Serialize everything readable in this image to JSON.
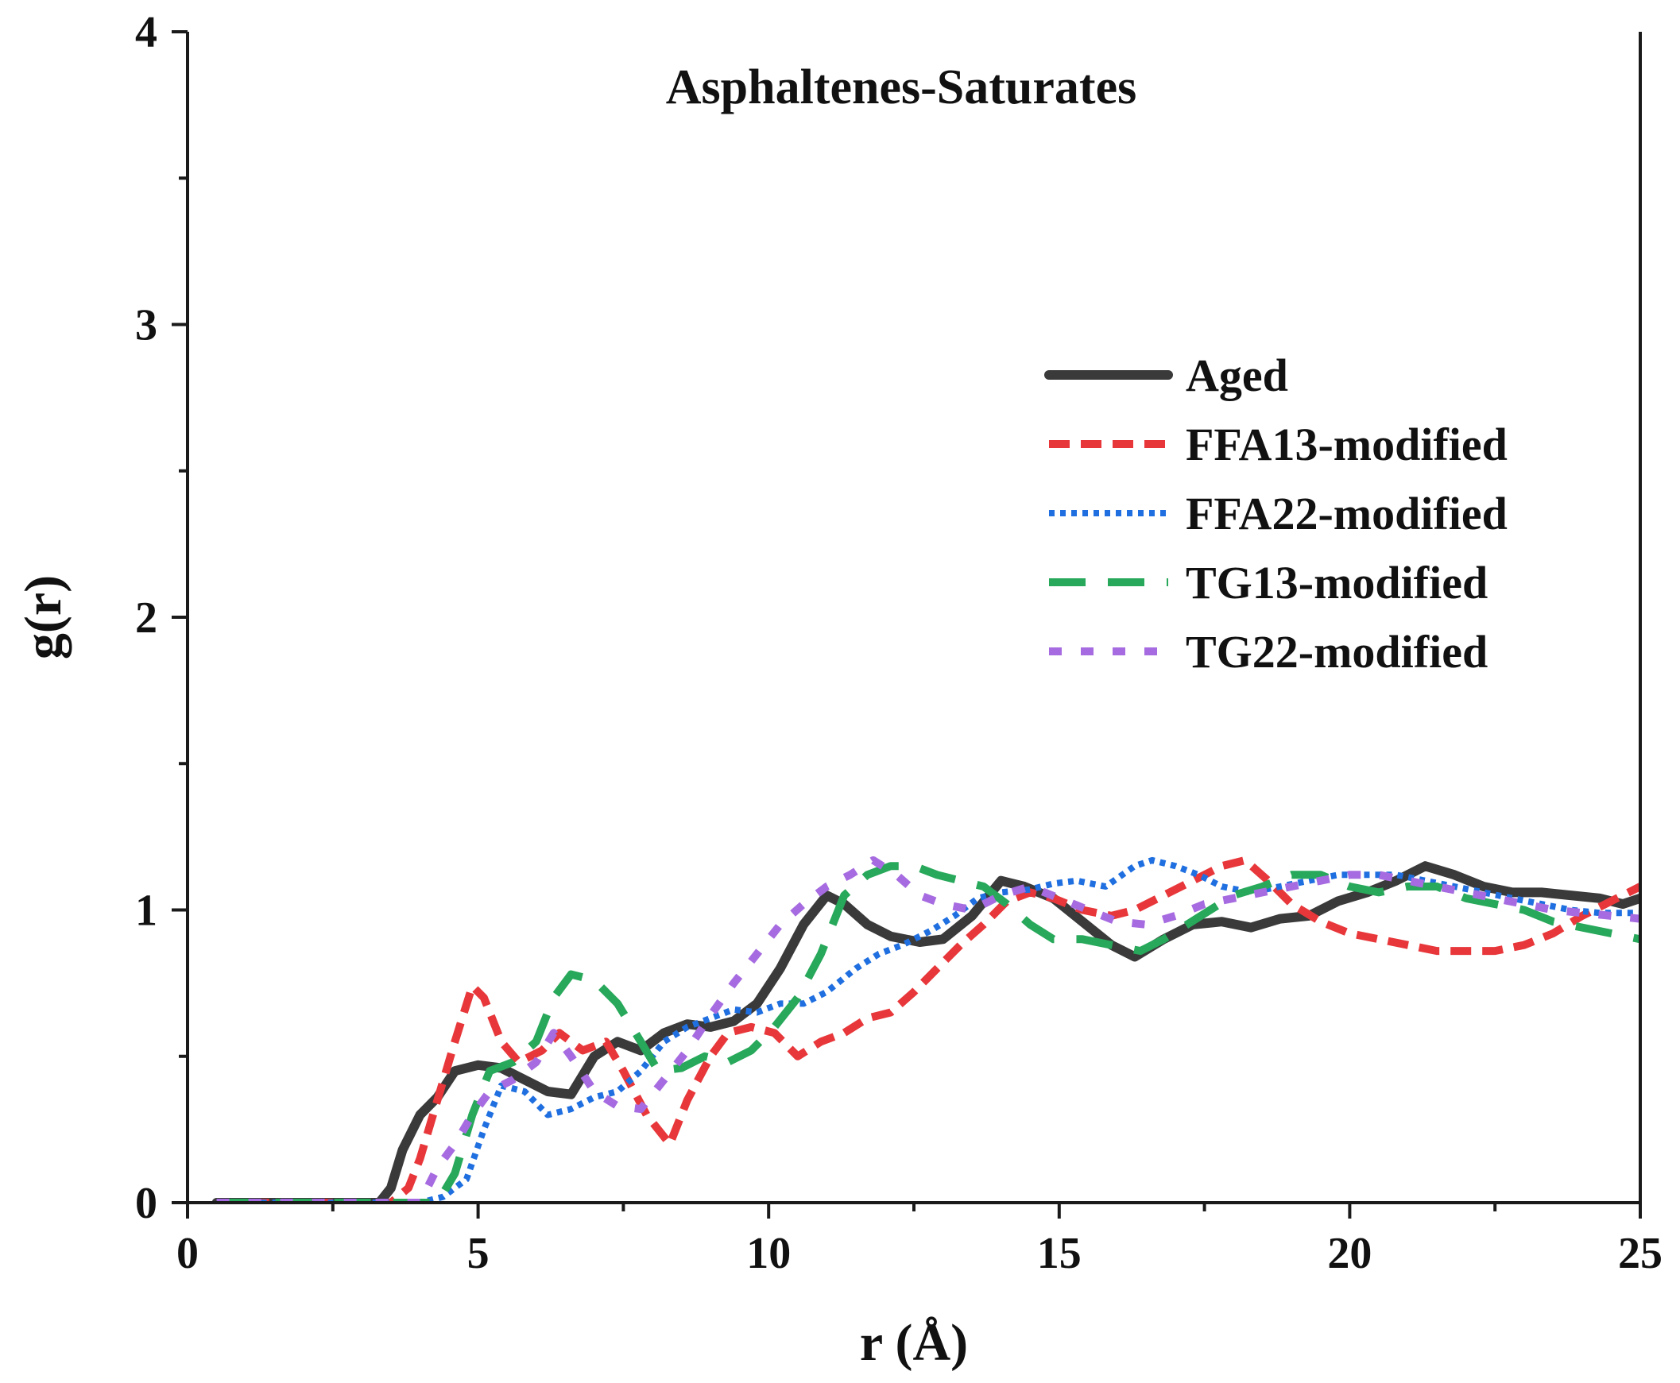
{
  "chart_data": {
    "type": "line",
    "title": "Asphaltenes-Saturates",
    "xlabel": "r (Å)",
    "ylabel": "g(r)",
    "xlim": [
      0,
      25
    ],
    "ylim": [
      0,
      4
    ],
    "xticks": [
      0,
      5,
      10,
      15,
      20,
      25
    ],
    "yticks": [
      0,
      1,
      2,
      3,
      4
    ],
    "xtick_labels": [
      "0",
      "5",
      "10",
      "15",
      "20",
      "25"
    ],
    "ytick_labels": [
      "0",
      "1",
      "2",
      "3",
      "4"
    ],
    "legend_position": "right",
    "series": [
      {
        "name": "Aged",
        "color": "#3a3a3a",
        "style": "solid",
        "points": [
          [
            0.5,
            0
          ],
          [
            3.3,
            0
          ],
          [
            3.5,
            0.05
          ],
          [
            3.7,
            0.18
          ],
          [
            4.0,
            0.3
          ],
          [
            4.3,
            0.36
          ],
          [
            4.6,
            0.45
          ],
          [
            5.0,
            0.47
          ],
          [
            5.4,
            0.46
          ],
          [
            5.8,
            0.42
          ],
          [
            6.2,
            0.38
          ],
          [
            6.6,
            0.37
          ],
          [
            7.0,
            0.5
          ],
          [
            7.4,
            0.55
          ],
          [
            7.8,
            0.52
          ],
          [
            8.2,
            0.58
          ],
          [
            8.6,
            0.61
          ],
          [
            9.0,
            0.6
          ],
          [
            9.4,
            0.62
          ],
          [
            9.8,
            0.68
          ],
          [
            10.2,
            0.8
          ],
          [
            10.6,
            0.95
          ],
          [
            11.0,
            1.05
          ],
          [
            11.3,
            1.02
          ],
          [
            11.7,
            0.95
          ],
          [
            12.1,
            0.91
          ],
          [
            12.6,
            0.89
          ],
          [
            13.0,
            0.9
          ],
          [
            13.5,
            0.98
          ],
          [
            14.0,
            1.1
          ],
          [
            14.4,
            1.08
          ],
          [
            14.9,
            1.04
          ],
          [
            15.4,
            0.96
          ],
          [
            15.9,
            0.88
          ],
          [
            16.3,
            0.84
          ],
          [
            16.8,
            0.9
          ],
          [
            17.3,
            0.95
          ],
          [
            17.8,
            0.96
          ],
          [
            18.3,
            0.94
          ],
          [
            18.8,
            0.97
          ],
          [
            19.3,
            0.98
          ],
          [
            19.8,
            1.03
          ],
          [
            20.3,
            1.06
          ],
          [
            20.8,
            1.1
          ],
          [
            21.3,
            1.15
          ],
          [
            21.8,
            1.12
          ],
          [
            22.3,
            1.08
          ],
          [
            22.8,
            1.06
          ],
          [
            23.3,
            1.06
          ],
          [
            23.8,
            1.05
          ],
          [
            24.3,
            1.04
          ],
          [
            24.7,
            1.02
          ],
          [
            25,
            1.04
          ]
        ]
      },
      {
        "name": "FFA13-modified",
        "color": "#e8373a",
        "style": "dashed",
        "points": [
          [
            0.5,
            0
          ],
          [
            3.5,
            0
          ],
          [
            3.8,
            0.05
          ],
          [
            4.0,
            0.15
          ],
          [
            4.3,
            0.35
          ],
          [
            4.6,
            0.55
          ],
          [
            4.9,
            0.74
          ],
          [
            5.1,
            0.7
          ],
          [
            5.4,
            0.55
          ],
          [
            5.7,
            0.48
          ],
          [
            6.1,
            0.52
          ],
          [
            6.4,
            0.58
          ],
          [
            6.8,
            0.52
          ],
          [
            7.2,
            0.55
          ],
          [
            7.5,
            0.45
          ],
          [
            7.9,
            0.3
          ],
          [
            8.3,
            0.2
          ],
          [
            8.6,
            0.35
          ],
          [
            9.0,
            0.5
          ],
          [
            9.3,
            0.58
          ],
          [
            9.7,
            0.6
          ],
          [
            10.1,
            0.58
          ],
          [
            10.5,
            0.5
          ],
          [
            10.9,
            0.55
          ],
          [
            11.3,
            0.58
          ],
          [
            11.7,
            0.63
          ],
          [
            12.1,
            0.65
          ],
          [
            12.5,
            0.72
          ],
          [
            12.9,
            0.8
          ],
          [
            13.3,
            0.88
          ],
          [
            13.7,
            0.95
          ],
          [
            14.1,
            1.03
          ],
          [
            14.5,
            1.06
          ],
          [
            14.9,
            1.04
          ],
          [
            15.4,
            1.0
          ],
          [
            15.9,
            0.98
          ],
          [
            16.3,
            1.0
          ],
          [
            16.8,
            1.05
          ],
          [
            17.3,
            1.1
          ],
          [
            17.8,
            1.15
          ],
          [
            18.2,
            1.17
          ],
          [
            18.6,
            1.1
          ],
          [
            19.0,
            1.02
          ],
          [
            19.5,
            0.96
          ],
          [
            20.0,
            0.92
          ],
          [
            20.5,
            0.9
          ],
          [
            21.0,
            0.88
          ],
          [
            21.5,
            0.86
          ],
          [
            22.0,
            0.86
          ],
          [
            22.5,
            0.86
          ],
          [
            23.0,
            0.88
          ],
          [
            23.5,
            0.92
          ],
          [
            24.0,
            0.98
          ],
          [
            24.5,
            1.03
          ],
          [
            25,
            1.08
          ]
        ]
      },
      {
        "name": "FFA22-modified",
        "color": "#1f6fe0",
        "style": "dotted",
        "points": [
          [
            0.5,
            0
          ],
          [
            4.0,
            0
          ],
          [
            4.4,
            0.02
          ],
          [
            4.8,
            0.08
          ],
          [
            5.1,
            0.25
          ],
          [
            5.4,
            0.4
          ],
          [
            5.8,
            0.38
          ],
          [
            6.2,
            0.3
          ],
          [
            6.6,
            0.32
          ],
          [
            7.0,
            0.36
          ],
          [
            7.4,
            0.38
          ],
          [
            7.8,
            0.45
          ],
          [
            8.2,
            0.55
          ],
          [
            8.6,
            0.6
          ],
          [
            9.0,
            0.63
          ],
          [
            9.4,
            0.66
          ],
          [
            9.8,
            0.65
          ],
          [
            10.2,
            0.68
          ],
          [
            10.6,
            0.68
          ],
          [
            11.0,
            0.72
          ],
          [
            11.5,
            0.8
          ],
          [
            11.9,
            0.85
          ],
          [
            12.3,
            0.88
          ],
          [
            12.8,
            0.93
          ],
          [
            13.2,
            0.98
          ],
          [
            13.6,
            1.04
          ],
          [
            14.0,
            1.06
          ],
          [
            14.5,
            1.07
          ],
          [
            14.9,
            1.09
          ],
          [
            15.3,
            1.1
          ],
          [
            15.8,
            1.08
          ],
          [
            16.3,
            1.15
          ],
          [
            16.6,
            1.17
          ],
          [
            17.0,
            1.15
          ],
          [
            17.4,
            1.12
          ],
          [
            17.8,
            1.08
          ],
          [
            18.3,
            1.06
          ],
          [
            18.8,
            1.08
          ],
          [
            19.3,
            1.1
          ],
          [
            19.8,
            1.12
          ],
          [
            20.3,
            1.12
          ],
          [
            20.8,
            1.12
          ],
          [
            21.3,
            1.1
          ],
          [
            21.8,
            1.08
          ],
          [
            22.3,
            1.06
          ],
          [
            22.8,
            1.04
          ],
          [
            23.3,
            1.02
          ],
          [
            23.8,
            1.0
          ],
          [
            24.3,
            0.99
          ],
          [
            24.7,
            0.99
          ],
          [
            25,
            0.99
          ]
        ]
      },
      {
        "name": "TG13-modified",
        "color": "#27a85a",
        "style": "longdash",
        "points": [
          [
            0.5,
            0
          ],
          [
            4.3,
            0
          ],
          [
            4.6,
            0.1
          ],
          [
            4.9,
            0.3
          ],
          [
            5.2,
            0.45
          ],
          [
            5.6,
            0.48
          ],
          [
            6.0,
            0.55
          ],
          [
            6.3,
            0.7
          ],
          [
            6.6,
            0.78
          ],
          [
            7.0,
            0.76
          ],
          [
            7.4,
            0.68
          ],
          [
            7.8,
            0.55
          ],
          [
            8.1,
            0.45
          ],
          [
            8.5,
            0.46
          ],
          [
            8.9,
            0.5
          ],
          [
            9.3,
            0.48
          ],
          [
            9.7,
            0.52
          ],
          [
            10.1,
            0.6
          ],
          [
            10.5,
            0.7
          ],
          [
            10.9,
            0.85
          ],
          [
            11.3,
            1.05
          ],
          [
            11.7,
            1.12
          ],
          [
            12.1,
            1.15
          ],
          [
            12.5,
            1.15
          ],
          [
            12.9,
            1.12
          ],
          [
            13.3,
            1.1
          ],
          [
            13.7,
            1.08
          ],
          [
            14.1,
            1.02
          ],
          [
            14.5,
            0.95
          ],
          [
            14.9,
            0.9
          ],
          [
            15.4,
            0.9
          ],
          [
            15.9,
            0.88
          ],
          [
            16.4,
            0.86
          ],
          [
            16.8,
            0.9
          ],
          [
            17.2,
            0.95
          ],
          [
            17.6,
            1.0
          ],
          [
            18.0,
            1.05
          ],
          [
            18.5,
            1.08
          ],
          [
            19.0,
            1.12
          ],
          [
            19.5,
            1.12
          ],
          [
            20.0,
            1.08
          ],
          [
            20.5,
            1.06
          ],
          [
            21.0,
            1.08
          ],
          [
            21.5,
            1.08
          ],
          [
            22.0,
            1.04
          ],
          [
            22.5,
            1.02
          ],
          [
            23.0,
            1.0
          ],
          [
            23.5,
            0.96
          ],
          [
            24.0,
            0.94
          ],
          [
            24.5,
            0.92
          ],
          [
            25,
            0.9
          ]
        ]
      },
      {
        "name": "TG22-modified",
        "color": "#a66be0",
        "style": "shortdash",
        "points": [
          [
            0.5,
            0
          ],
          [
            4.0,
            0
          ],
          [
            4.3,
            0.12
          ],
          [
            4.6,
            0.2
          ],
          [
            4.9,
            0.3
          ],
          [
            5.2,
            0.38
          ],
          [
            5.6,
            0.42
          ],
          [
            6.0,
            0.48
          ],
          [
            6.3,
            0.58
          ],
          [
            6.6,
            0.5
          ],
          [
            7.0,
            0.38
          ],
          [
            7.4,
            0.33
          ],
          [
            7.8,
            0.32
          ],
          [
            8.2,
            0.42
          ],
          [
            8.6,
            0.52
          ],
          [
            9.0,
            0.64
          ],
          [
            9.4,
            0.75
          ],
          [
            9.8,
            0.85
          ],
          [
            10.2,
            0.95
          ],
          [
            10.6,
            1.02
          ],
          [
            11.0,
            1.08
          ],
          [
            11.4,
            1.12
          ],
          [
            11.8,
            1.17
          ],
          [
            12.2,
            1.12
          ],
          [
            12.6,
            1.05
          ],
          [
            13.0,
            1.02
          ],
          [
            13.5,
            1.0
          ],
          [
            14.0,
            1.05
          ],
          [
            14.5,
            1.08
          ],
          [
            15.0,
            1.04
          ],
          [
            15.5,
            1.0
          ],
          [
            16.0,
            0.96
          ],
          [
            16.5,
            0.95
          ],
          [
            17.0,
            0.98
          ],
          [
            17.5,
            1.02
          ],
          [
            18.0,
            1.04
          ],
          [
            18.5,
            1.06
          ],
          [
            19.0,
            1.08
          ],
          [
            19.5,
            1.1
          ],
          [
            20.0,
            1.12
          ],
          [
            20.5,
            1.12
          ],
          [
            21.0,
            1.1
          ],
          [
            21.5,
            1.08
          ],
          [
            22.0,
            1.06
          ],
          [
            22.5,
            1.04
          ],
          [
            23.0,
            1.02
          ],
          [
            23.5,
            1.0
          ],
          [
            24.0,
            0.99
          ],
          [
            24.5,
            0.98
          ],
          [
            25,
            0.97
          ]
        ]
      }
    ]
  }
}
